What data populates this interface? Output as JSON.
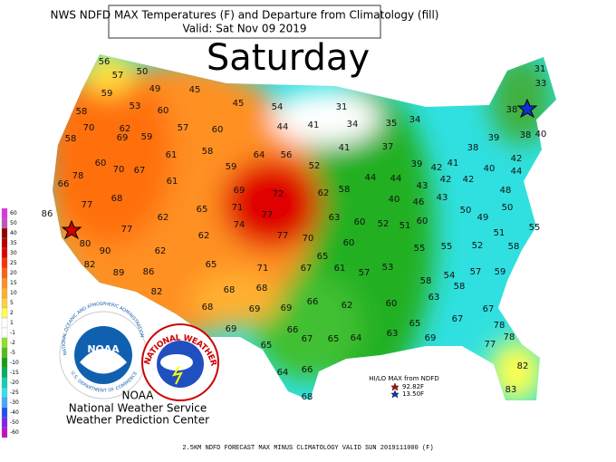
{
  "header": {
    "title": "NWS NDFD MAX Temperatures (F) and Departure from Climatology (fill)",
    "valid": "Valid: Sat Nov 09 2019",
    "day": "Saturday"
  },
  "map": {
    "temperatures": [
      56,
      50,
      57,
      59,
      49,
      45,
      53,
      60,
      45,
      54,
      58,
      57,
      60,
      44,
      41,
      31,
      34,
      35,
      34,
      70,
      62,
      58,
      69,
      59,
      58,
      61,
      64,
      56,
      52,
      41,
      37,
      39,
      42,
      41,
      38,
      39,
      38,
      31,
      33,
      40,
      38,
      42,
      40,
      44,
      70,
      67,
      59,
      78,
      60,
      66,
      61,
      44,
      44,
      43,
      42,
      42,
      48,
      69,
      72,
      62,
      58,
      77,
      68,
      65,
      71,
      40,
      46,
      43,
      50,
      50,
      86,
      62,
      77,
      74,
      63,
      60,
      52,
      51,
      60,
      49,
      51,
      55,
      77,
      62,
      77,
      70,
      60,
      80,
      90,
      62,
      55,
      55,
      52,
      58,
      65,
      82,
      65,
      71,
      67,
      61,
      57,
      53,
      89,
      86,
      58,
      54,
      57,
      59,
      82,
      68,
      68,
      58,
      63,
      66,
      62,
      60,
      68,
      69,
      69,
      67,
      69,
      66,
      65,
      67,
      78,
      67,
      65,
      64,
      63,
      69,
      78,
      65,
      77,
      82,
      64,
      66,
      83,
      68
    ]
  },
  "legend": {
    "values": [
      60,
      50,
      40,
      35,
      30,
      25,
      20,
      15,
      10,
      5,
      2,
      1,
      -1,
      -2,
      -5,
      -10,
      -15,
      -20,
      -25,
      -30,
      -40,
      -50,
      -60
    ],
    "colors": [
      "#e030e0",
      "#c050c0",
      "#900000",
      "#b80000",
      "#e00000",
      "#ff3000",
      "#ff6010",
      "#ff9020",
      "#ffb030",
      "#ffd040",
      "#ffff50",
      "#ffffff",
      "#ffffff",
      "#90e020",
      "#50c010",
      "#10a010",
      "#00b060",
      "#10d0b0",
      "#30e0f0",
      "#40a8ff",
      "#2050f0",
      "#8020f0",
      "#c010c0"
    ]
  },
  "logos": {
    "noaa_badge": "NOAA",
    "noaa_ring": "NATIONAL OCEANIC AND ATMOSPHERIC ADMINISTRATION",
    "noaa_ring_bottom": "U.S. DEPARTMENT OF COMMERCE",
    "nws_ring": "NATIONAL WEATHER SERVICE"
  },
  "credits": {
    "noaa": "NOAA",
    "line1": "National Weather Service",
    "line2": "Weather Prediction Center"
  },
  "hilo": {
    "title": "HI/LO MAX from NDFD",
    "hi": "92.82F",
    "lo": "13.50F"
  },
  "footer": "2.5KM NDFD FORECAST MAX MINUS CLIMATOLOGY VALID SUN 2019111000 (F)"
}
